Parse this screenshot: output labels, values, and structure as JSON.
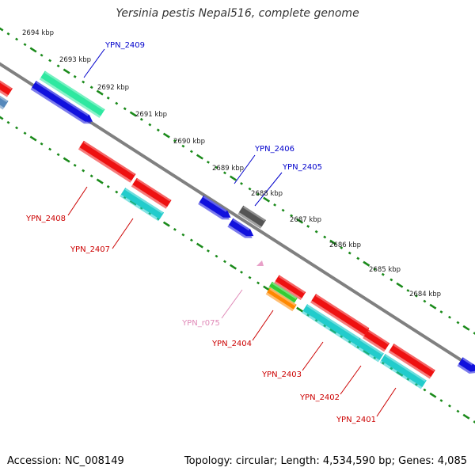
{
  "header": {
    "title": "Yersinia pestis Nepal516, complete genome"
  },
  "footer": {
    "accession": "Accession: NC_008149",
    "topology": "Topology: circular; Length: 4,534,590 bp; Genes: 4,085"
  },
  "colors": {
    "backbone": "#808080",
    "tick": "#1a8a1a",
    "kbp_text": "#222222",
    "label_blue": "#0000cc",
    "label_red": "#cc0000",
    "label_pink": "#e08ab8"
  },
  "ticks": [
    {
      "label": "2694 kbp"
    },
    {
      "label": "2693 kbp"
    },
    {
      "label": "2692 kbp"
    },
    {
      "label": "2691 kbp"
    },
    {
      "label": "2690 kbp"
    },
    {
      "label": "2689 kbp"
    },
    {
      "label": "2688 kbp"
    },
    {
      "label": "2687 kbp"
    },
    {
      "label": "2686 kbp"
    },
    {
      "label": "2685 kbp"
    },
    {
      "label": "2684 kbp"
    }
  ],
  "features": [
    {
      "name": "YPN_2409",
      "color": "#2ee8a0",
      "strand": "plus"
    },
    {
      "name": "YPN_2408",
      "color": "#ee1111",
      "strand": "minus"
    },
    {
      "name": "YPN_2407",
      "color": "#22cccc",
      "strand": "minus"
    },
    {
      "name": "YPN_2406",
      "color": "#1111dd",
      "strand": "plus"
    },
    {
      "name": "YPN_2405",
      "color": "#555555",
      "strand": "plus"
    },
    {
      "name": "YPN_r075",
      "color": "#e8a0c8",
      "strand": "minus"
    },
    {
      "name": "YPN_2404",
      "color": "#ee1111",
      "strand": "minus"
    },
    {
      "name": "YPN_2403",
      "color": "#ee1111",
      "strand": "minus"
    },
    {
      "name": "YPN_2402",
      "color": "#22cccc",
      "strand": "minus"
    },
    {
      "name": "YPN_2401",
      "color": "#ee1111",
      "strand": "minus"
    }
  ]
}
